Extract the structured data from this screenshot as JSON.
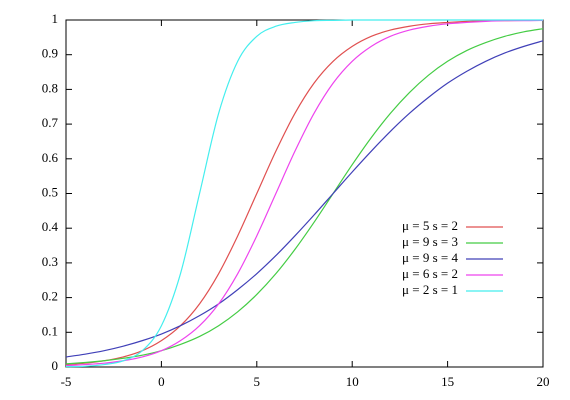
{
  "chart_data": {
    "type": "line",
    "x": [
      -5,
      -4,
      -3,
      -2,
      -1,
      0,
      1,
      2,
      3,
      4,
      5,
      6,
      7,
      8,
      9,
      10,
      11,
      12,
      13,
      14,
      15,
      16,
      17,
      18,
      19,
      20
    ],
    "series": [
      {
        "name": "μ = 5 s = 2",
        "color": "#e05050",
        "values": [
          0.007,
          0.011,
          0.018,
          0.029,
          0.047,
          0.076,
          0.119,
          0.182,
          0.269,
          0.378,
          0.5,
          0.622,
          0.731,
          0.818,
          0.881,
          0.924,
          0.953,
          0.971,
          0.982,
          0.989,
          0.993,
          0.996,
          0.998,
          0.998,
          0.999,
          0.999
        ]
      },
      {
        "name": "μ = 9 s = 3",
        "color": "#44cc44",
        "values": [
          0.009,
          0.013,
          0.018,
          0.025,
          0.034,
          0.047,
          0.065,
          0.088,
          0.119,
          0.159,
          0.209,
          0.269,
          0.339,
          0.417,
          0.5,
          0.583,
          0.661,
          0.731,
          0.791,
          0.841,
          0.881,
          0.912,
          0.935,
          0.953,
          0.966,
          0.975
        ]
      },
      {
        "name": "μ = 9 s = 4",
        "color": "#4040b8",
        "values": [
          0.029,
          0.037,
          0.047,
          0.06,
          0.076,
          0.095,
          0.119,
          0.148,
          0.182,
          0.223,
          0.269,
          0.321,
          0.378,
          0.438,
          0.5,
          0.562,
          0.622,
          0.679,
          0.731,
          0.777,
          0.818,
          0.852,
          0.881,
          0.905,
          0.924,
          0.94
        ]
      },
      {
        "name": "μ = 6 s = 2",
        "color": "#ee44ee",
        "values": [
          0.004,
          0.007,
          0.011,
          0.018,
          0.029,
          0.047,
          0.076,
          0.119,
          0.182,
          0.269,
          0.378,
          0.5,
          0.622,
          0.731,
          0.818,
          0.881,
          0.924,
          0.953,
          0.971,
          0.982,
          0.989,
          0.993,
          0.996,
          0.998,
          0.998,
          0.999
        ]
      },
      {
        "name": "μ = 2 s = 1",
        "color": "#44eeee",
        "values": [
          0.001,
          0.002,
          0.007,
          0.018,
          0.047,
          0.119,
          0.269,
          0.5,
          0.731,
          0.881,
          0.953,
          0.982,
          0.993,
          0.998,
          0.999,
          1,
          1,
          1,
          1,
          1,
          1,
          1,
          1,
          1,
          1,
          1
        ]
      }
    ],
    "xlim": [
      -5,
      20
    ],
    "xticks": [
      -5,
      0,
      5,
      10,
      15,
      20
    ],
    "ylim": [
      0,
      1
    ],
    "yticks": [
      0,
      0.1,
      0.2,
      0.3,
      0.4,
      0.5,
      0.6,
      0.7,
      0.8,
      0.9,
      1
    ],
    "legend": "right"
  }
}
